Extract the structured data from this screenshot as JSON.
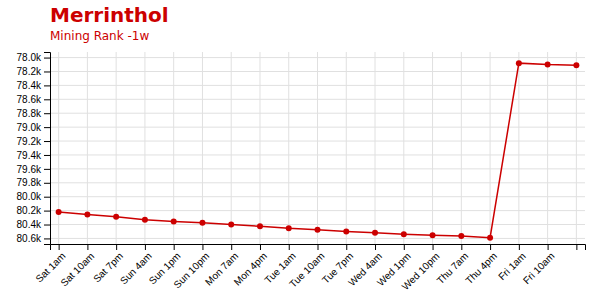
{
  "chart_data": {
    "type": "line",
    "title": "Merrinthol",
    "subtitle": "Mining Rank -1w",
    "categories": [
      "Sat 1am",
      "Sat 10am",
      "Sat 7pm",
      "Sun 4am",
      "Sun 1pm",
      "Sun 10pm",
      "Mon 7am",
      "Mon 4pm",
      "Tue 1am",
      "Tue 10am",
      "Tue 7pm",
      "Wed 4am",
      "Wed 1pm",
      "Wed 10pm",
      "Thu 7am",
      "Thu 4pm",
      "Fri 1am",
      "Fri 10am",
      null
    ],
    "values": [
      80220,
      80255,
      80290,
      80330,
      80355,
      80375,
      80400,
      80425,
      80455,
      80475,
      80500,
      80520,
      80540,
      80555,
      80565,
      80590,
      78080,
      78100,
      78110
    ],
    "color": "#cc0000",
    "marker": "circle",
    "ylim": [
      80680,
      77920
    ],
    "yticks": [
      {
        "value": 78000,
        "label": "78.0k"
      },
      {
        "value": 78200,
        "label": "78.2k"
      },
      {
        "value": 78400,
        "label": "78.4k"
      },
      {
        "value": 78600,
        "label": "78.6k"
      },
      {
        "value": 78800,
        "label": "78.8k"
      },
      {
        "value": 79000,
        "label": "79.0k"
      },
      {
        "value": 79200,
        "label": "79.2k"
      },
      {
        "value": 79400,
        "label": "79.4k"
      },
      {
        "value": 79600,
        "label": "79.6k"
      },
      {
        "value": 79800,
        "label": "79.8k"
      },
      {
        "value": 80000,
        "label": "80.0k"
      },
      {
        "value": 80200,
        "label": "80.2k"
      },
      {
        "value": 80400,
        "label": "80.4k"
      },
      {
        "value": 80600,
        "label": "80.6k"
      }
    ],
    "grid": true
  }
}
